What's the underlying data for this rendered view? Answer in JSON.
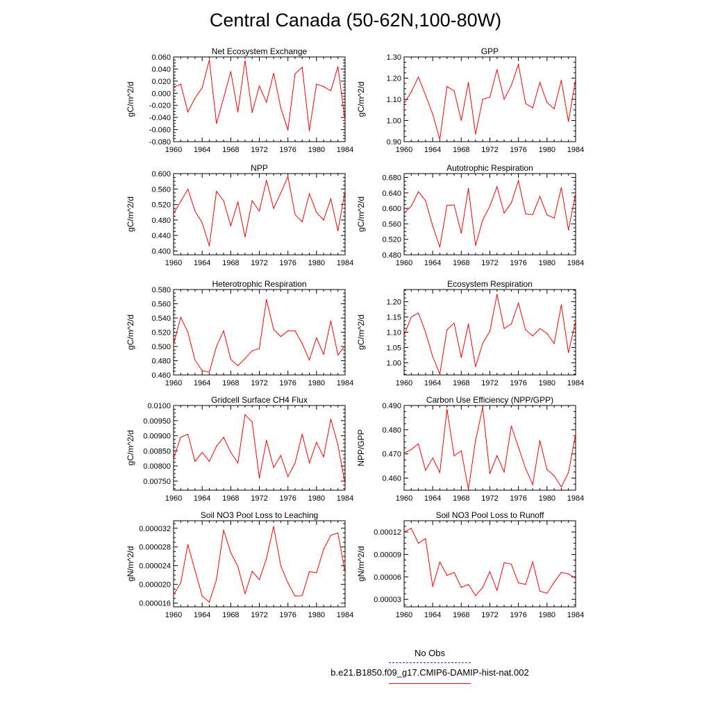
{
  "title": "Central Canada (50-62N,100-80W)",
  "legend": {
    "obs_label": "No Obs",
    "obs_color": "#3030c0",
    "model_label": "b.e21.B1850.f09_g17.CMIP6-DAMIP-hist-nat.002",
    "model_color": "#ff0000"
  },
  "chart_data": [
    {
      "type": "line",
      "title": "Net Ecosystem Exchange",
      "ylabel": "gC/m^2/d",
      "xlim": [
        1960,
        1984
      ],
      "ylim": [
        -0.08,
        0.06
      ],
      "xticks": [
        1960,
        1964,
        1968,
        1972,
        1976,
        1980,
        1984
      ],
      "xtick_labels": [
        "1960",
        "1964",
        "1968",
        "1972",
        "1976",
        "1980",
        "1984"
      ],
      "yticks": [
        -0.08,
        -0.06,
        -0.04,
        -0.02,
        0.0,
        0.02,
        0.04,
        0.06
      ],
      "ytick_labels": [
        "-0.080",
        "-0.060",
        "-0.040",
        "-0.020",
        "0.000",
        "0.020",
        "0.040",
        "0.060"
      ],
      "x": [
        1960,
        1961,
        1962,
        1963,
        1964,
        1965,
        1966,
        1967,
        1968,
        1969,
        1970,
        1971,
        1972,
        1973,
        1974,
        1975,
        1976,
        1977,
        1978,
        1979,
        1980,
        1981,
        1982,
        1983,
        1984
      ],
      "series": [
        {
          "values": [
            0.01,
            0.015,
            -0.031,
            -0.008,
            0.009,
            0.055,
            -0.05,
            -0.008,
            0.036,
            -0.031,
            0.054,
            -0.032,
            0.012,
            -0.015,
            0.033,
            -0.024,
            -0.061,
            0.032,
            0.043,
            -0.062,
            0.015,
            0.011,
            0.004,
            0.044,
            -0.046
          ]
        }
      ]
    },
    {
      "type": "line",
      "title": "GPP",
      "ylabel": "gC/m^2/d",
      "xlim": [
        1960,
        1984
      ],
      "ylim": [
        0.9,
        1.3
      ],
      "xticks": [
        1960,
        1964,
        1968,
        1972,
        1976,
        1980,
        1984
      ],
      "xtick_labels": [
        "1960",
        "1964",
        "1968",
        "1972",
        "1976",
        "1980",
        "1984"
      ],
      "yticks": [
        0.9,
        1.0,
        1.1,
        1.2,
        1.3
      ],
      "ytick_labels": [
        "0.90",
        "1.00",
        "1.10",
        "1.20",
        "1.30"
      ],
      "x": [
        1960,
        1961,
        1962,
        1963,
        1964,
        1965,
        1966,
        1967,
        1968,
        1969,
        1970,
        1971,
        1972,
        1973,
        1974,
        1975,
        1976,
        1977,
        1978,
        1979,
        1980,
        1981,
        1982,
        1983,
        1984
      ],
      "series": [
        {
          "values": [
            1.08,
            1.135,
            1.205,
            1.12,
            1.03,
            0.91,
            1.16,
            1.14,
            1.0,
            1.18,
            0.935,
            1.1,
            1.11,
            1.24,
            1.1,
            1.165,
            1.265,
            1.08,
            1.06,
            1.18,
            1.085,
            1.055,
            1.19,
            0.995,
            1.195
          ]
        }
      ]
    },
    {
      "type": "line",
      "title": "NPP",
      "ylabel": "gC/m^2/d",
      "xlim": [
        1960,
        1984
      ],
      "ylim": [
        0.39,
        0.6
      ],
      "xticks": [
        1960,
        1964,
        1968,
        1972,
        1976,
        1980,
        1984
      ],
      "xtick_labels": [
        "1960",
        "1964",
        "1968",
        "1972",
        "1976",
        "1980",
        "1984"
      ],
      "yticks": [
        0.4,
        0.44,
        0.48,
        0.52,
        0.56,
        0.6
      ],
      "ytick_labels": [
        "0.400",
        "0.440",
        "0.480",
        "0.520",
        "0.560",
        "0.600"
      ],
      "x": [
        1960,
        1961,
        1962,
        1963,
        1964,
        1965,
        1966,
        1967,
        1968,
        1969,
        1970,
        1971,
        1972,
        1973,
        1974,
        1975,
        1976,
        1977,
        1978,
        1979,
        1980,
        1981,
        1982,
        1983,
        1984
      ],
      "series": [
        {
          "values": [
            0.497,
            0.528,
            0.56,
            0.503,
            0.473,
            0.413,
            0.554,
            0.53,
            0.465,
            0.527,
            0.436,
            0.53,
            0.503,
            0.583,
            0.51,
            0.55,
            0.592,
            0.494,
            0.475,
            0.548,
            0.5,
            0.48,
            0.535,
            0.452,
            0.556
          ]
        }
      ]
    },
    {
      "type": "line",
      "title": "Autotrophic Respiration",
      "ylabel": "gC/m^2/d",
      "xlim": [
        1960,
        1984
      ],
      "ylim": [
        0.48,
        0.69
      ],
      "xticks": [
        1960,
        1964,
        1968,
        1972,
        1976,
        1980,
        1984
      ],
      "xtick_labels": [
        "1960",
        "1964",
        "1968",
        "1972",
        "1976",
        "1980",
        "1984"
      ],
      "yticks": [
        0.48,
        0.52,
        0.56,
        0.6,
        0.64,
        0.68
      ],
      "ytick_labels": [
        "0.480",
        "0.520",
        "0.560",
        "0.600",
        "0.640",
        "0.680"
      ],
      "x": [
        1960,
        1961,
        1962,
        1963,
        1964,
        1965,
        1966,
        1967,
        1968,
        1969,
        1970,
        1971,
        1972,
        1973,
        1974,
        1975,
        1976,
        1977,
        1978,
        1979,
        1980,
        1981,
        1982,
        1983,
        1984
      ],
      "series": [
        {
          "values": [
            0.588,
            0.606,
            0.643,
            0.62,
            0.555,
            0.5,
            0.608,
            0.609,
            0.536,
            0.652,
            0.504,
            0.57,
            0.606,
            0.656,
            0.588,
            0.614,
            0.672,
            0.586,
            0.584,
            0.631,
            0.583,
            0.575,
            0.654,
            0.544,
            0.639
          ]
        }
      ]
    },
    {
      "type": "line",
      "title": "Heterotrophic Respiration",
      "ylabel": "gC/m^2/d",
      "xlim": [
        1960,
        1984
      ],
      "ylim": [
        0.46,
        0.58
      ],
      "xticks": [
        1960,
        1964,
        1968,
        1972,
        1976,
        1980,
        1984
      ],
      "xtick_labels": [
        "1960",
        "1964",
        "1968",
        "1972",
        "1976",
        "1980",
        "1984"
      ],
      "yticks": [
        0.46,
        0.48,
        0.5,
        0.52,
        0.54,
        0.56,
        0.58
      ],
      "ytick_labels": [
        "0.460",
        "0.480",
        "0.500",
        "0.520",
        "0.540",
        "0.560",
        "0.580"
      ],
      "x": [
        1960,
        1961,
        1962,
        1963,
        1964,
        1965,
        1966,
        1967,
        1968,
        1969,
        1970,
        1971,
        1972,
        1973,
        1974,
        1975,
        1976,
        1977,
        1978,
        1979,
        1980,
        1981,
        1982,
        1983,
        1984
      ],
      "series": [
        {
          "values": [
            0.503,
            0.541,
            0.52,
            0.481,
            0.466,
            0.464,
            0.5,
            0.522,
            0.482,
            0.473,
            0.483,
            0.494,
            0.497,
            0.566,
            0.524,
            0.514,
            0.522,
            0.522,
            0.504,
            0.481,
            0.512,
            0.489,
            0.536,
            0.488,
            0.501
          ]
        }
      ]
    },
    {
      "type": "line",
      "title": "Ecosystem Respiration",
      "ylabel": "gC/m^2/d",
      "xlim": [
        1960,
        1984
      ],
      "ylim": [
        0.96,
        1.24
      ],
      "xticks": [
        1960,
        1964,
        1968,
        1972,
        1976,
        1980,
        1984
      ],
      "xtick_labels": [
        "1960",
        "1964",
        "1968",
        "1972",
        "1976",
        "1980",
        "1984"
      ],
      "yticks": [
        1.0,
        1.05,
        1.1,
        1.15,
        1.2
      ],
      "ytick_labels": [
        "1.00",
        "1.05",
        "1.10",
        "1.15",
        "1.20"
      ],
      "x": [
        1960,
        1961,
        1962,
        1963,
        1964,
        1965,
        1966,
        1967,
        1968,
        1969,
        1970,
        1971,
        1972,
        1973,
        1974,
        1975,
        1976,
        1977,
        1978,
        1979,
        1980,
        1981,
        1982,
        1983,
        1984
      ],
      "series": [
        {
          "values": [
            1.09,
            1.15,
            1.163,
            1.1,
            1.02,
            0.963,
            1.108,
            1.13,
            1.017,
            1.127,
            0.987,
            1.064,
            1.103,
            1.224,
            1.112,
            1.127,
            1.196,
            1.108,
            1.088,
            1.112,
            1.096,
            1.063,
            1.19,
            1.033,
            1.137
          ]
        }
      ]
    },
    {
      "type": "line",
      "title": "Gridcell Surface CH4 Flux",
      "ylabel": "gC/m^2/d",
      "xlim": [
        1960,
        1984
      ],
      "ylim": [
        0.0072,
        0.01
      ],
      "xticks": [
        1960,
        1964,
        1968,
        1972,
        1976,
        1980,
        1984
      ],
      "xtick_labels": [
        "1960",
        "1964",
        "1968",
        "1972",
        "1976",
        "1980",
        "1984"
      ],
      "yticks": [
        0.0075,
        0.008,
        0.0085,
        0.009,
        0.0095,
        0.01
      ],
      "ytick_labels": [
        "0.00750",
        "0.00800",
        "0.00850",
        "0.00900",
        "0.00950",
        "0.0100"
      ],
      "x": [
        1960,
        1961,
        1962,
        1963,
        1964,
        1965,
        1966,
        1967,
        1968,
        1969,
        1970,
        1971,
        1972,
        1973,
        1974,
        1975,
        1976,
        1977,
        1978,
        1979,
        1980,
        1981,
        1982,
        1983,
        1984
      ],
      "series": [
        {
          "values": [
            0.00825,
            0.00895,
            0.00905,
            0.00815,
            0.00845,
            0.00815,
            0.00865,
            0.00895,
            0.00845,
            0.0081,
            0.0097,
            0.00945,
            0.0076,
            0.00885,
            0.00795,
            0.00835,
            0.00765,
            0.0081,
            0.00905,
            0.0081,
            0.00878,
            0.0083,
            0.00955,
            0.0087,
            0.0074
          ]
        }
      ]
    },
    {
      "type": "line",
      "title": "Carbon Use Efficiency (NPP/GPP)",
      "ylabel": "NPP/GPP",
      "xlim": [
        1960,
        1984
      ],
      "ylim": [
        0.455,
        0.49
      ],
      "xticks": [
        1960,
        1964,
        1968,
        1972,
        1976,
        1980,
        1984
      ],
      "xtick_labels": [
        "1960",
        "1964",
        "1968",
        "1972",
        "1976",
        "1980",
        "1984"
      ],
      "yticks": [
        0.46,
        0.47,
        0.48,
        0.49
      ],
      "ytick_labels": [
        "0.460",
        "0.470",
        "0.480",
        "0.490"
      ],
      "x": [
        1960,
        1961,
        1962,
        1963,
        1964,
        1965,
        1966,
        1967,
        1968,
        1969,
        1970,
        1971,
        1972,
        1973,
        1974,
        1975,
        1976,
        1977,
        1978,
        1979,
        1980,
        1981,
        1982,
        1983,
        1984
      ],
      "series": [
        {
          "values": [
            0.4703,
            0.4718,
            0.4742,
            0.4632,
            0.4683,
            0.4623,
            0.4885,
            0.4692,
            0.4713,
            0.4553,
            0.4755,
            0.4892,
            0.4618,
            0.4693,
            0.4625,
            0.4815,
            0.4728,
            0.464,
            0.4573,
            0.4755,
            0.4635,
            0.461,
            0.4563,
            0.4623,
            0.4782
          ]
        }
      ]
    },
    {
      "type": "line",
      "title": "Soil NO3 Pool Loss to Leaching",
      "ylabel": "gN/m^2/d",
      "xlim": [
        1960,
        1984
      ],
      "ylim": [
        1.52e-05,
        3.36e-05
      ],
      "xticks": [
        1960,
        1964,
        1968,
        1972,
        1976,
        1980,
        1984
      ],
      "xtick_labels": [
        "1960",
        "1964",
        "1968",
        "1972",
        "1976",
        "1980",
        "1984"
      ],
      "yticks": [
        1.6e-05,
        2e-05,
        2.4e-05,
        2.8e-05,
        3.2e-05
      ],
      "ytick_labels": [
        "0.000016",
        "0.000020",
        "0.000024",
        "0.000028",
        "0.000032"
      ],
      "x": [
        1960,
        1961,
        1962,
        1963,
        1964,
        1965,
        1966,
        1967,
        1968,
        1969,
        1970,
        1971,
        1972,
        1973,
        1974,
        1975,
        1976,
        1977,
        1978,
        1979,
        1980,
        1981,
        1982,
        1983,
        1984
      ],
      "series": [
        {
          "values": [
            1.78e-05,
            2.03e-05,
            2.85e-05,
            2.3e-05,
            1.75e-05,
            1.62e-05,
            2.1e-05,
            3.16e-05,
            2.68e-05,
            2.38e-05,
            1.8e-05,
            2.28e-05,
            2.1e-05,
            2.55e-05,
            3.24e-05,
            2.4e-05,
            2.03e-05,
            1.75e-05,
            1.76e-05,
            2.27e-05,
            2.25e-05,
            2.75e-05,
            3.05e-05,
            3.1e-05,
            2.25e-05
          ]
        }
      ]
    },
    {
      "type": "line",
      "title": "Soil NO3 Pool Loss to Runoff",
      "ylabel": "gN/m^2/d",
      "xlim": [
        1960,
        1984
      ],
      "ylim": [
        2e-05,
        0.000135
      ],
      "xticks": [
        1960,
        1964,
        1968,
        1972,
        1976,
        1980,
        1984
      ],
      "xtick_labels": [
        "1960",
        "1964",
        "1968",
        "1972",
        "1976",
        "1980",
        "1984"
      ],
      "yticks": [
        3e-05,
        6e-05,
        9e-05,
        0.00012
      ],
      "ytick_labels": [
        "0.00003",
        "0.00006",
        "0.00009",
        "0.00012"
      ],
      "x": [
        1960,
        1961,
        1962,
        1963,
        1964,
        1965,
        1966,
        1967,
        1968,
        1969,
        1970,
        1971,
        1972,
        1973,
        1974,
        1975,
        1976,
        1977,
        1978,
        1979,
        1980,
        1981,
        1982,
        1983,
        1984
      ],
      "series": [
        {
          "values": [
            0.00012,
            0.000125,
            0.000105,
            0.000111,
            4.7e-05,
            8e-05,
            6.2e-05,
            6.6e-05,
            4.6e-05,
            5e-05,
            3.5e-05,
            4.6e-05,
            6.7e-05,
            4.2e-05,
            7.9e-05,
            7.7e-05,
            5.2e-05,
            5e-05,
            8e-05,
            4.1e-05,
            3.8e-05,
            5.3e-05,
            6.6e-05,
            6.4e-05,
            5.8e-05
          ]
        }
      ]
    }
  ]
}
